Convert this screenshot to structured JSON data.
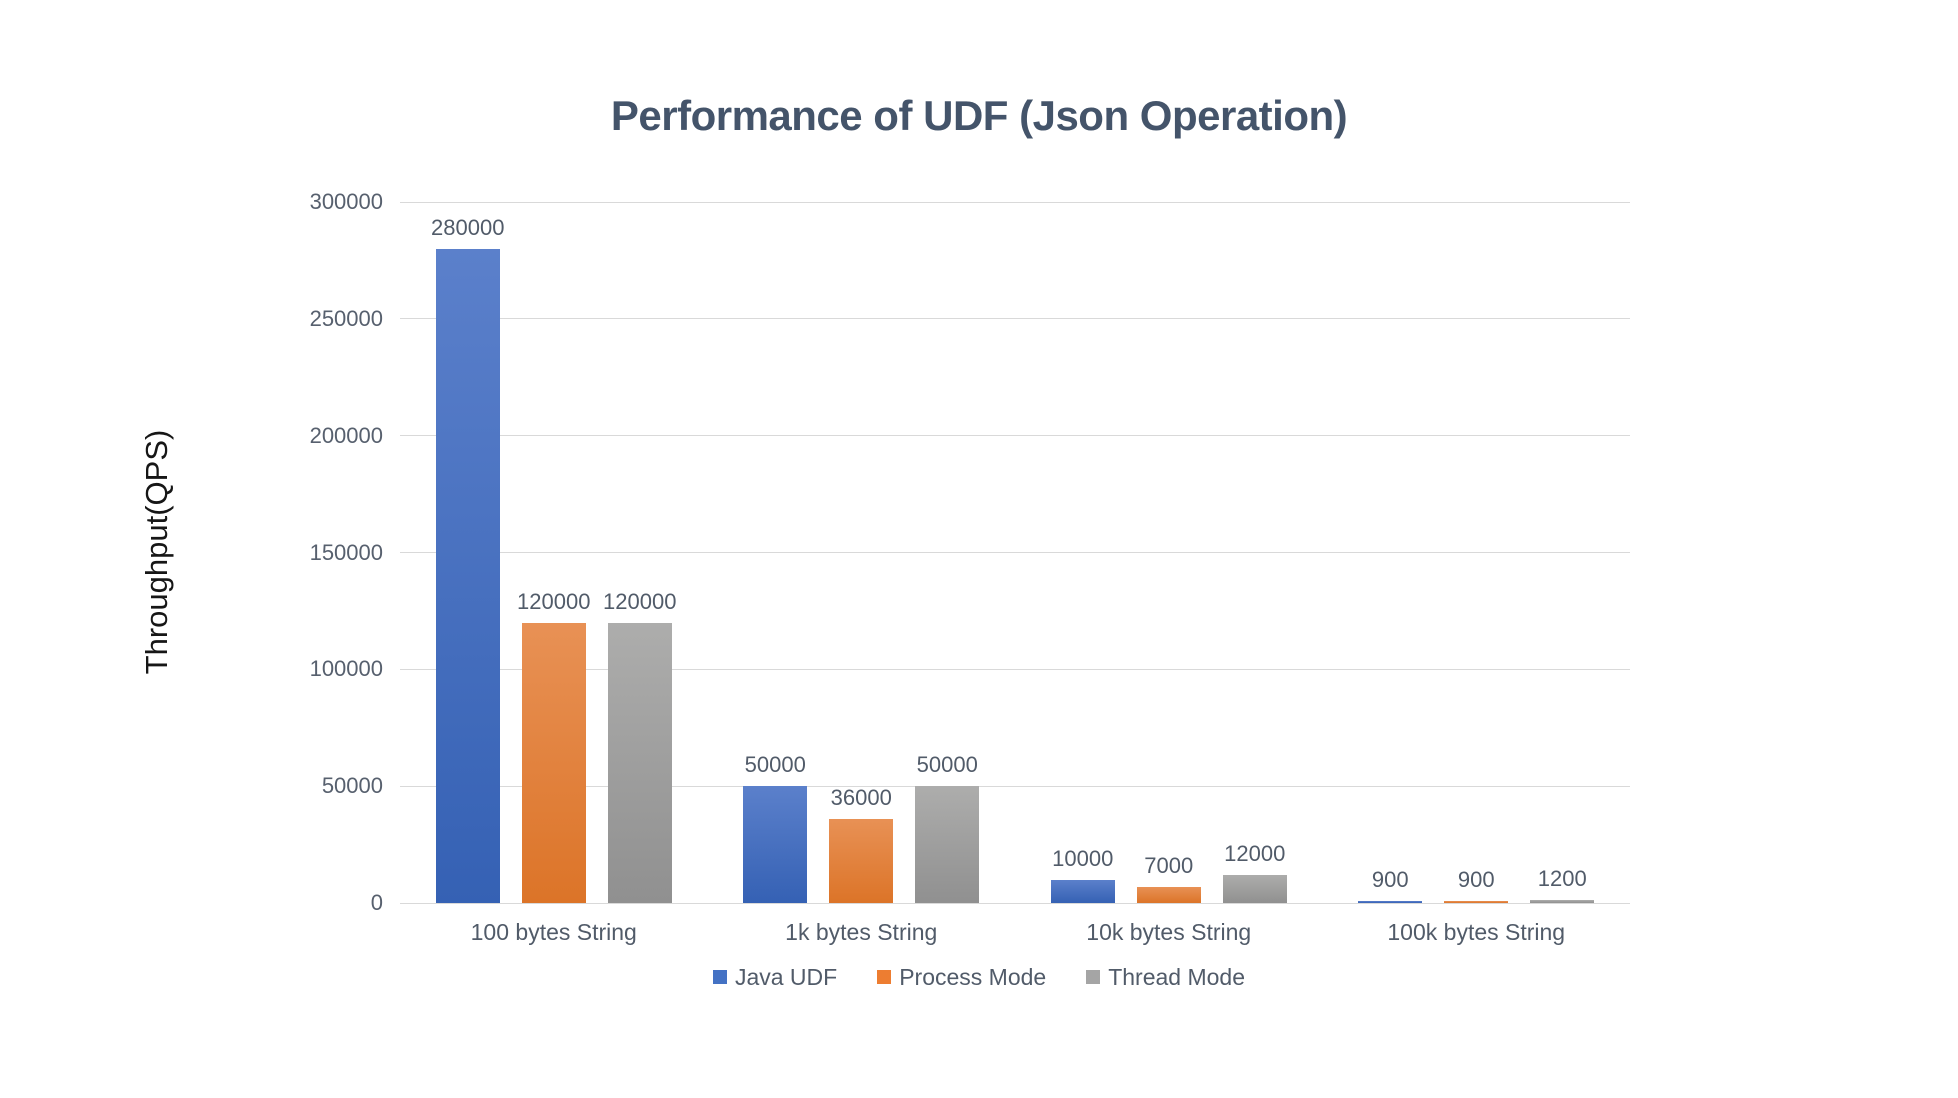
{
  "chart_data": {
    "type": "bar",
    "title": "Performance of UDF (Json Operation)",
    "ylabel": "Throughput(QPS)",
    "xlabel": "",
    "categories": [
      "100 bytes String",
      "1k bytes String",
      "10k bytes String",
      "100k bytes String"
    ],
    "series": [
      {
        "name": "Java UDF",
        "color": "#4472C4",
        "gradient": [
          "#5B80CB",
          "#3561B4"
        ],
        "values": [
          280000,
          50000,
          10000,
          900
        ]
      },
      {
        "name": "Process Mode",
        "color": "#ED7D31",
        "gradient": [
          "#E89155",
          "#DC7428"
        ],
        "values": [
          120000,
          36000,
          7000,
          900
        ]
      },
      {
        "name": "Thread Mode",
        "color": "#A5A5A5",
        "gradient": [
          "#ADADAC",
          "#909090"
        ],
        "values": [
          120000,
          50000,
          12000,
          1200
        ]
      }
    ],
    "y_axis": {
      "min": 0,
      "max": 300000,
      "step": 50000,
      "tick_labels": [
        "0",
        "50000",
        "100000",
        "150000",
        "200000",
        "250000",
        "300000"
      ]
    },
    "data_labels": true,
    "grid": true,
    "legend_position": "bottom",
    "colors": {
      "title_text": "#44546A",
      "axis_tick_text": "#57606E",
      "label_text": "#515B69",
      "axis_title_text": "#161616",
      "gridline": "#D9D9D9",
      "background": "#FFFFFF"
    }
  }
}
